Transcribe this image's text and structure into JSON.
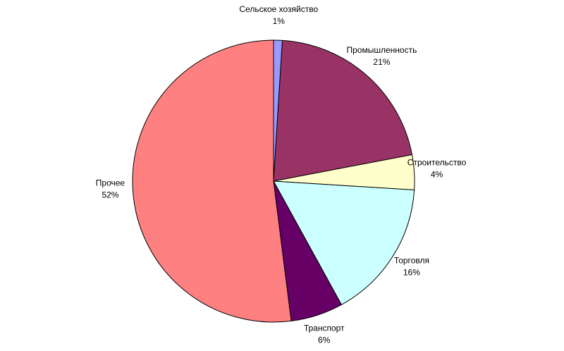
{
  "chart_data": {
    "type": "pie",
    "categories": [
      "Сельское хозяйство",
      "Промышленность",
      "Строительство",
      "Торговля",
      "Транспорт",
      "Прочее"
    ],
    "values": [
      1,
      21,
      4,
      16,
      6,
      52
    ],
    "value_labels": [
      "1%",
      "21%",
      "4%",
      "16%",
      "6%",
      "52%"
    ],
    "colors": [
      "#9999ff",
      "#993366",
      "#ffffcc",
      "#ccffff",
      "#660066",
      "#ff8080"
    ]
  }
}
